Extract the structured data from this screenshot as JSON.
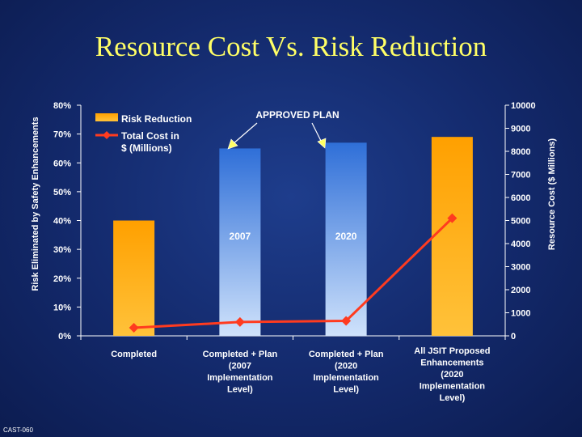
{
  "slide": {
    "title": "Resource Cost Vs. Risk Reduction",
    "footer": "CAST-060"
  },
  "colors": {
    "background": "#13296b",
    "title": "#ffff66",
    "risk_bar": "#ffa000",
    "approved_bar": "#3f88e0",
    "cost_line": "#ff3b1f",
    "annotation_arrow": "#ffff66"
  },
  "chart_data": {
    "type": "bar",
    "categories": [
      [
        "Completed"
      ],
      [
        "Completed + Plan",
        "(2007",
        "Implementation",
        "Level)"
      ],
      [
        "Completed + Plan",
        "(2020",
        "Implementation",
        "Level)"
      ],
      [
        "All JSIT Proposed",
        "Enhancements",
        "(2020",
        "Implementation",
        "Level)"
      ]
    ],
    "ylabel": "Risk Eliminated by Safety Enhancements",
    "y2label": "Resource Cost ($ Millions)",
    "ylim": [
      0,
      80
    ],
    "y2lim": [
      0,
      10000
    ],
    "yticks": [
      "0%",
      "10%",
      "20%",
      "30%",
      "40%",
      "50%",
      "60%",
      "70%",
      "80%"
    ],
    "y2ticks": [
      "0",
      "1000",
      "2000",
      "3000",
      "4000",
      "5000",
      "6000",
      "7000",
      "8000",
      "9000",
      "10000"
    ],
    "series": [
      {
        "name": "Risk Reduction",
        "kind": "bar",
        "axis": "left",
        "values": [
          40,
          65,
          67,
          69
        ],
        "bar_styles": [
          "orange",
          "blue",
          "blue",
          "orange"
        ]
      },
      {
        "name": "Total Cost in $ (Millions)",
        "kind": "line",
        "axis": "right",
        "values": [
          350,
          600,
          650,
          5100
        ]
      }
    ],
    "annotations": {
      "approved_plan": "APPROVED PLAN",
      "bar_labels": [
        "",
        "2007",
        "2020",
        ""
      ]
    },
    "legend": {
      "placement": "top-left",
      "entries": [
        "Risk Reduction",
        "Total Cost in",
        "$ (Millions)"
      ]
    },
    "grid": false
  }
}
